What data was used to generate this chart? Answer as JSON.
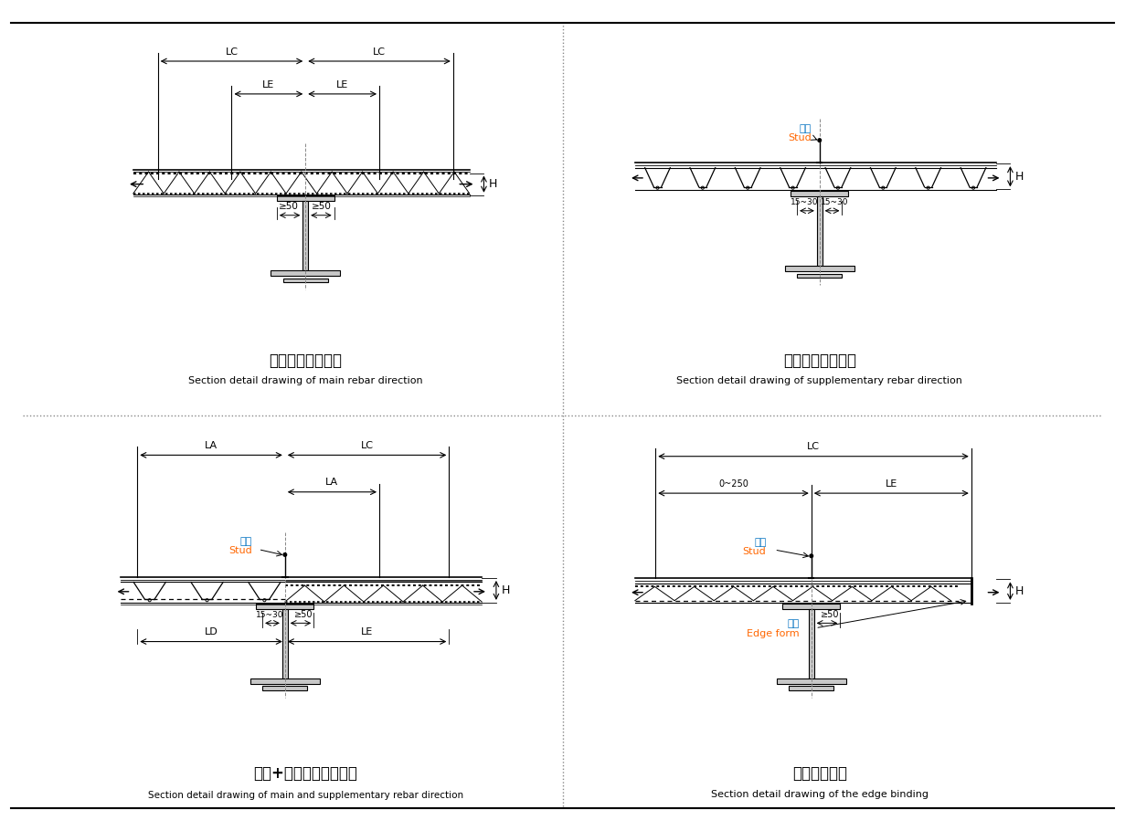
{
  "bg_color": "#ffffff",
  "line_color": "#000000",
  "panel_titles_zh": [
    "主筋方向截面详图",
    "辅筋方向截面详图",
    "辅筋+主筋方向截面详图",
    "收边截面详图"
  ],
  "panel_titles_en": [
    "Section detail drawing of main rebar direction",
    "Section detail drawing of supplementary rebar direction",
    "Section detail drawing of main and supplementary rebar direction",
    "Section detail drawing of the edge binding"
  ],
  "stud_zh": "栓钉",
  "stud_en": "Stud",
  "edge_form_zh": "边模",
  "edge_form_en": "Edge form",
  "label_H": "H",
  "dim_50": "≥50",
  "dim_15_30": "15~30",
  "dim_0_250": "0~250",
  "labels_LC": "LC",
  "labels_LE": "LE",
  "labels_LA": "LA",
  "labels_LD": "LD"
}
